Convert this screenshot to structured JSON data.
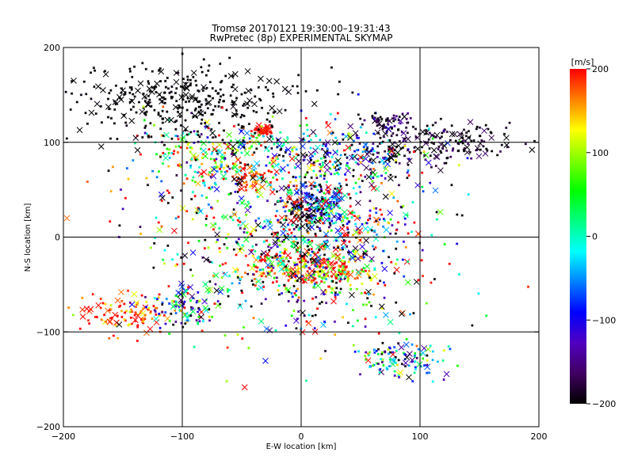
{
  "chart_data": {
    "type": "scatter",
    "title": "Tromsø 20170121 19:30:00–19:31:43",
    "subtitle": "RwPretec (8p) EXPERIMENTAL SKYMAP",
    "xlabel": "E-W location [km]",
    "ylabel": "N-S location [km]",
    "xlim": [
      -200,
      200
    ],
    "ylim": [
      -200,
      200
    ],
    "xticks": [
      -200,
      -100,
      0,
      100,
      200
    ],
    "yticks": [
      -200,
      -100,
      0,
      100,
      200
    ],
    "x_tick_labels": [
      "−200",
      "−100",
      "0",
      "100",
      "200"
    ],
    "y_tick_labels": [
      "−200",
      "−100",
      "0",
      "100",
      "200"
    ],
    "grid": true,
    "gridlines_x": [
      -100,
      0,
      100
    ],
    "gridlines_y": [
      -100,
      0,
      100
    ],
    "colorbar": {
      "label": "[m/s]",
      "min": -200,
      "max": 200,
      "ticks": [
        200,
        100,
        0,
        -100,
        -200
      ],
      "tick_labels": [
        "200",
        "100",
        "0",
        "−100",
        "−200"
      ],
      "colormap": [
        "#000000",
        "#400060",
        "#5000c0",
        "#0000ff",
        "#0080ff",
        "#00ffff",
        "#00ff80",
        "#00ff00",
        "#80ff00",
        "#ffff00",
        "#ff8000",
        "#ff0000"
      ]
    },
    "clusters": [
      {
        "center": [
          0,
          28
        ],
        "spread": [
          9,
          9
        ],
        "velocity": -190,
        "vspread": 25
      },
      {
        "center": [
          25,
          30
        ],
        "spread": [
          9,
          9
        ],
        "velocity": -50,
        "vspread": 60
      },
      {
        "center": [
          12,
          42
        ],
        "spread": [
          12,
          10
        ],
        "velocity": -120,
        "vspread": 80
      },
      {
        "center": [
          -45,
          62
        ],
        "spread": [
          8,
          6
        ],
        "velocity": 180,
        "vspread": 30
      },
      {
        "center": [
          -32,
          113
        ],
        "spread": [
          4,
          3
        ],
        "velocity": 200,
        "vspread": 10
      },
      {
        "center": [
          72,
          123
        ],
        "spread": [
          9,
          5
        ],
        "velocity": -170,
        "vspread": 40
      },
      {
        "center": [
          -10,
          -32
        ],
        "spread": [
          24,
          10
        ],
        "velocity": 170,
        "vspread": 50
      },
      {
        "center": [
          25,
          -38
        ],
        "spread": [
          20,
          10
        ],
        "velocity": 140,
        "vspread": 80
      },
      {
        "center": [
          -140,
          -80
        ],
        "spread": [
          22,
          10
        ],
        "velocity": 180,
        "vspread": 40
      },
      {
        "center": [
          -100,
          -75
        ],
        "spread": [
          12,
          10
        ],
        "velocity": -60,
        "vspread": 120
      },
      {
        "center": [
          85,
          -130
        ],
        "spread": [
          22,
          10
        ],
        "velocity": -50,
        "vspread": 100
      },
      {
        "center": [
          40,
          85
        ],
        "spread": [
          40,
          14
        ],
        "velocity": -100,
        "vspread": 110
      },
      {
        "center": [
          -70,
          85
        ],
        "spread": [
          35,
          18
        ],
        "velocity": 40,
        "vspread": 140
      },
      {
        "center": [
          -100,
          140
        ],
        "spread": [
          50,
          20
        ],
        "velocity": -200,
        "vspread": 5
      },
      {
        "center": [
          120,
          100
        ],
        "spread": [
          30,
          12
        ],
        "velocity": -190,
        "vspread": 20
      },
      {
        "center": [
          0,
          0
        ],
        "spread": [
          55,
          50
        ],
        "velocity": 0,
        "vspread": 200
      }
    ],
    "clusters_note": "Points rendered as small crosses/dots colored by line-of-sight velocity."
  }
}
